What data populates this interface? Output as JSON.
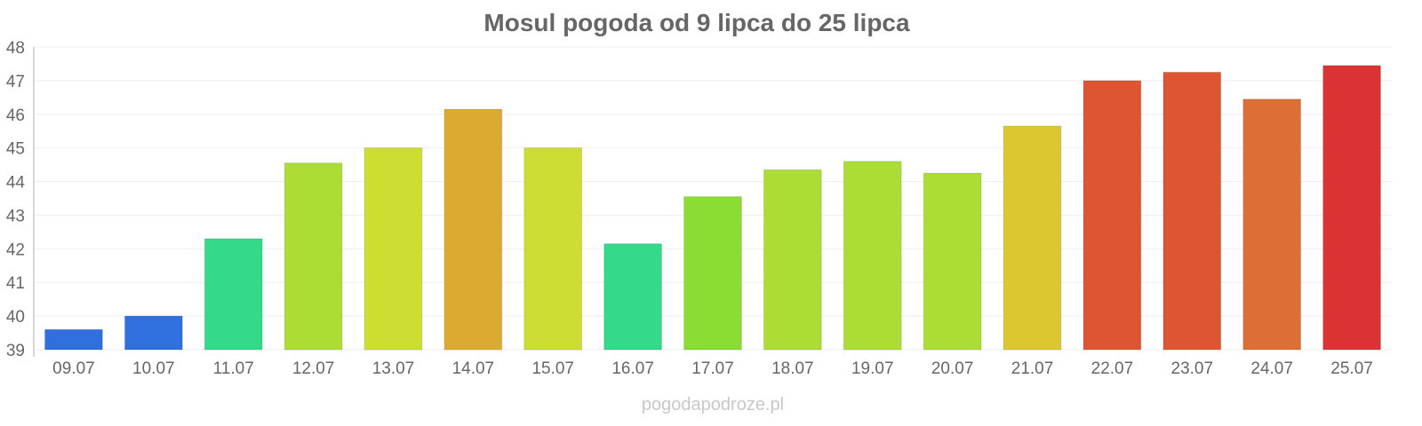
{
  "chart_data": {
    "type": "bar",
    "title": "Mosul pogoda od 9 lipca do 25 lipca",
    "xlabel": "",
    "ylabel": "",
    "ylim": [
      39,
      48
    ],
    "yticks": [
      "39",
      "40",
      "41",
      "42",
      "43",
      "44",
      "45",
      "46",
      "47",
      "48"
    ],
    "grid": true,
    "categories": [
      "09.07",
      "10.07",
      "11.07",
      "12.07",
      "13.07",
      "14.07",
      "15.07",
      "16.07",
      "17.07",
      "18.07",
      "19.07",
      "20.07",
      "21.07",
      "22.07",
      "23.07",
      "24.07",
      "25.07"
    ],
    "values": [
      39.6,
      40.0,
      42.3,
      44.55,
      45.0,
      46.15,
      45.0,
      42.15,
      43.55,
      44.35,
      44.6,
      44.25,
      45.65,
      47.0,
      47.25,
      46.45,
      47.45
    ],
    "colors": [
      "#2f6fde",
      "#2f6fde",
      "#34d98a",
      "#abdd35",
      "#cedd32",
      "#dcaa31",
      "#cedd32",
      "#34d98a",
      "#89dd33",
      "#abdd35",
      "#abdd35",
      "#abdd35",
      "#dbc831",
      "#dd5533",
      "#dd5533",
      "#dd6f35",
      "#db3333"
    ]
  },
  "watermark": "pogodapodroze.pl"
}
